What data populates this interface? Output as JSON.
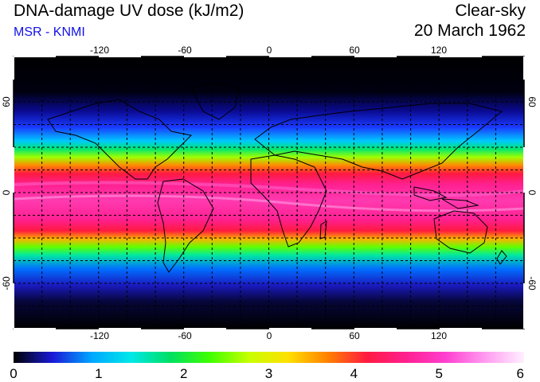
{
  "header": {
    "title": "DNA-damage UV dose (kJ/m2)",
    "subtitle": "MSR - KNMI",
    "sky": "Clear-sky",
    "date": "20 March 1962"
  },
  "map": {
    "lon_ticks": [
      "-120",
      "-60",
      "0",
      "60",
      "120"
    ],
    "lat_ticks": [
      "60",
      "0",
      "-60"
    ],
    "background": "#000000",
    "grid_style": "dashed"
  },
  "colorbar": {
    "labels": [
      "0",
      "1",
      "2",
      "3",
      "4",
      "5",
      "6"
    ],
    "colors": [
      "#000000",
      "#1a1ad8",
      "#00a8ff",
      "#00e8e8",
      "#00e060",
      "#40ff00",
      "#c8ff00",
      "#ffe000",
      "#ff8000",
      "#ff1a40",
      "#ff2090",
      "#ff40d0",
      "#ff9af0",
      "#fff0ff"
    ]
  }
}
